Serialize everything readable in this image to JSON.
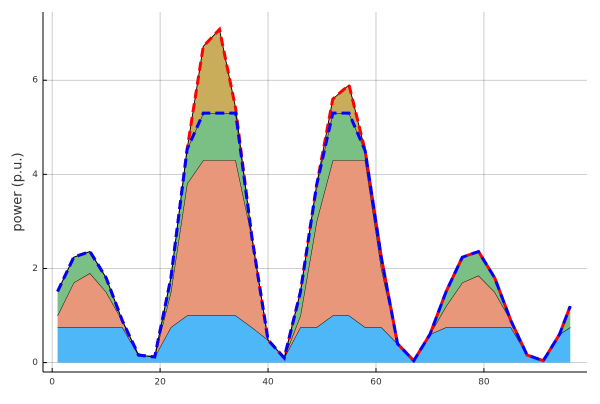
{
  "chart_data": {
    "type": "stacked_area",
    "y_label": "power (p.u.)",
    "x": [
      1,
      4,
      7,
      10,
      13,
      16,
      19,
      22,
      25,
      28,
      31,
      34,
      37,
      40,
      43,
      46,
      49,
      52,
      55,
      58,
      61,
      64,
      67,
      70,
      73,
      76,
      79,
      82,
      85,
      88,
      91,
      94,
      96
    ],
    "series": [
      {
        "color": "#4db7f8",
        "values": [
          0.75,
          0.75,
          0.75,
          0.75,
          0.75,
          0.16,
          0.12,
          0.75,
          1.0,
          1.0,
          1.0,
          1.0,
          0.75,
          0.48,
          0.1,
          0.75,
          0.75,
          1.0,
          1.0,
          0.75,
          0.75,
          0.4,
          0.04,
          0.6,
          0.75,
          0.75,
          0.75,
          0.75,
          0.75,
          0.16,
          0.04,
          0.6,
          0.75
        ]
      },
      {
        "color": "#e9977a",
        "values": [
          0.25,
          0.95,
          1.15,
          0.75,
          0.14,
          0,
          0,
          0.75,
          2.8,
          3.3,
          3.3,
          3.3,
          1.92,
          0,
          0,
          0.25,
          2.25,
          3.3,
          3.3,
          3.55,
          1.25,
          0,
          0,
          0,
          0.45,
          0.95,
          1.1,
          0.75,
          0.14,
          0,
          0,
          0,
          0
        ]
      },
      {
        "color": "#7ac084",
        "values": [
          0.51,
          0.54,
          0.46,
          0.3,
          0,
          0,
          0,
          0.3,
          0.73,
          1.0,
          1.0,
          1.0,
          0,
          0,
          0,
          0.5,
          0.77,
          1.0,
          1.0,
          0.2,
          0.23,
          0,
          0,
          0,
          0.31,
          0.54,
          0.51,
          0.3,
          0,
          0,
          0,
          0,
          0.45
        ]
      },
      {
        "color": "#c9ad5b",
        "values": [
          0,
          0,
          0,
          0,
          0,
          0,
          0,
          0,
          0,
          1.42,
          1.78,
          0.1,
          0,
          0,
          0,
          0,
          0,
          0.3,
          0.6,
          0,
          0,
          0,
          0,
          0,
          0,
          0,
          0,
          0,
          0,
          0,
          0,
          0,
          0
        ]
      }
    ],
    "lines": [
      {
        "color": "#ff0000",
        "values": [
          1.51,
          2.24,
          2.36,
          1.8,
          0.89,
          0.16,
          0.12,
          1.8,
          4.53,
          6.72,
          7.08,
          5.4,
          2.67,
          0.48,
          0.1,
          1.5,
          3.77,
          5.6,
          5.9,
          4.5,
          2.23,
          0.4,
          0.04,
          0.6,
          1.51,
          2.24,
          2.36,
          1.8,
          0.89,
          0.16,
          0.04,
          0.6,
          1.2
        ]
      },
      {
        "color": "#0000ff",
        "values": [
          1.51,
          2.24,
          2.36,
          1.8,
          0.89,
          0.16,
          0.12,
          1.8,
          4.53,
          5.3,
          5.3,
          5.3,
          2.67,
          0.48,
          0.1,
          1.5,
          3.77,
          5.3,
          5.3,
          4.5,
          2.23,
          0.4,
          0.04,
          0.6,
          1.51,
          2.24,
          2.36,
          1.8,
          0.89,
          0.16,
          0.04,
          0.6,
          1.2
        ]
      }
    ],
    "xlim": [
      -1.7,
      99.1
    ],
    "ylim": [
      -0.2,
      7.45
    ],
    "xticks": [
      0,
      20,
      40,
      60,
      80
    ],
    "yticks": [
      0,
      2,
      4,
      6
    ],
    "grid": true
  }
}
